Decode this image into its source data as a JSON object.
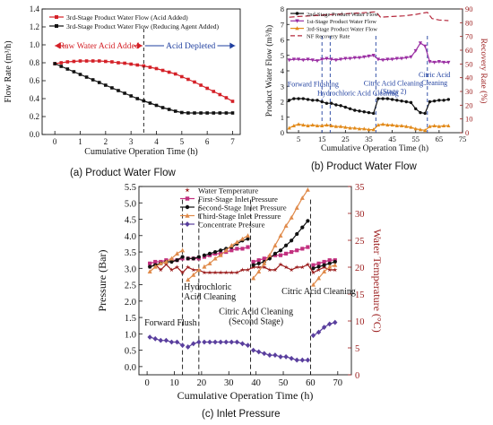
{
  "captions": {
    "a": "(a) Product Water Flow",
    "b": "(b) Product Water Flow",
    "c": "(c) Inlet Pressure"
  },
  "chart_data": [
    {
      "type": "line",
      "panel": "a",
      "xlabel": "Cumulative Operation Time (h)",
      "ylabel": "Flow Rate (m³/h)",
      "xlim": [
        -0.5,
        7.3
      ],
      "ylim": [
        0,
        1.4
      ],
      "xticks": [
        "0",
        "1",
        "2",
        "3",
        "4",
        "5",
        "6",
        "7"
      ],
      "yticks": [
        "0.0",
        "0.2",
        "0.4",
        "0.6",
        "0.8",
        "1.0",
        "1.2",
        "1.4"
      ],
      "grid": false,
      "legend_position": "top-right",
      "series": [
        {
          "name": "3rd-Stage Product Water Flow (Acid Added)",
          "color": "#d42027",
          "marker": "square",
          "x": [
            0,
            0.25,
            0.5,
            0.75,
            1,
            1.25,
            1.5,
            1.75,
            2,
            2.25,
            2.5,
            2.75,
            3,
            3.25,
            3.5,
            3.75,
            4,
            4.25,
            4.5,
            4.75,
            5,
            5.25,
            5.5,
            5.75,
            6,
            6.25,
            6.5,
            6.75,
            7
          ],
          "y": [
            0.79,
            0.8,
            0.81,
            0.815,
            0.82,
            0.82,
            0.82,
            0.82,
            0.815,
            0.81,
            0.8,
            0.795,
            0.785,
            0.775,
            0.765,
            0.75,
            0.735,
            0.715,
            0.695,
            0.675,
            0.645,
            0.615,
            0.585,
            0.55,
            0.515,
            0.48,
            0.445,
            0.41,
            0.37
          ]
        },
        {
          "name": "3rd-Stage Product Water Flow (Reducing Agent Added)",
          "color": "#111111",
          "marker": "square",
          "x": [
            0,
            0.25,
            0.5,
            0.75,
            1,
            1.25,
            1.5,
            1.75,
            2,
            2.25,
            2.5,
            2.75,
            3,
            3.25,
            3.5,
            3.75,
            4,
            4.25,
            4.5,
            4.75,
            5,
            5.25,
            5.5,
            5.75,
            6,
            6.25,
            6.5,
            6.75,
            7
          ],
          "y": [
            0.79,
            0.76,
            0.73,
            0.7,
            0.67,
            0.64,
            0.61,
            0.58,
            0.55,
            0.52,
            0.49,
            0.46,
            0.43,
            0.4,
            0.375,
            0.35,
            0.325,
            0.3,
            0.28,
            0.26,
            0.245,
            0.24,
            0.24,
            0.24,
            0.24,
            0.24,
            0.24,
            0.24,
            0.24
          ]
        }
      ],
      "annotations": [
        {
          "text": "Raw Water Acid Added",
          "color": "#d42027"
        },
        {
          "text": "Acid Depleted",
          "color": "#1f3f9f"
        }
      ]
    },
    {
      "type": "line",
      "panel": "b",
      "xlabel": "Cumulative Operation Time (h)",
      "ylabel": "Product Water Flow (m³/h)",
      "ylabel_right": "Recovery Rate (%)",
      "xlim": [
        0,
        75
      ],
      "ylim": [
        0,
        8
      ],
      "ylim_right": [
        0,
        90
      ],
      "xticks": [
        "5",
        "15",
        "25",
        "35",
        "45",
        "55",
        "65",
        "75"
      ],
      "yticks": [
        "0",
        "1",
        "2",
        "3",
        "4",
        "5",
        "6",
        "7",
        "8"
      ],
      "yticks_right": [
        "0",
        "10",
        "20",
        "30",
        "40",
        "50",
        "60",
        "70",
        "80",
        "90"
      ],
      "legend_position": "top-left",
      "series": [
        {
          "name": "2nd-Stage Product Water Flow",
          "color": "#111111",
          "marker": "circle",
          "x": [
            1,
            3,
            5,
            7,
            9,
            11,
            13,
            15,
            17,
            19,
            21,
            23,
            25,
            27,
            29,
            31,
            33,
            35,
            37,
            39,
            41,
            43,
            45,
            47,
            49,
            51,
            53,
            55,
            57,
            59,
            61,
            63,
            65,
            67,
            69
          ],
          "y": [
            2.1,
            2.2,
            2.2,
            2.2,
            2.15,
            2.1,
            2.1,
            2.0,
            1.9,
            1.9,
            1.8,
            1.75,
            1.65,
            1.55,
            1.45,
            1.4,
            1.35,
            1.3,
            1.25,
            2.2,
            2.2,
            2.2,
            2.15,
            2.1,
            2.05,
            2.0,
            1.95,
            1.55,
            1.3,
            1.25,
            2.0,
            2.05,
            2.1,
            2.1,
            2.15
          ]
        },
        {
          "name": "1st-Stage Product Water Flow",
          "color": "#9b2fa3",
          "marker": "triangle-down",
          "x": [
            1,
            3,
            5,
            7,
            9,
            11,
            13,
            15,
            17,
            19,
            21,
            23,
            25,
            27,
            29,
            31,
            33,
            35,
            37,
            39,
            41,
            43,
            45,
            47,
            49,
            51,
            53,
            55,
            57,
            59,
            61,
            63,
            65,
            67,
            69
          ],
          "y": [
            4.7,
            4.75,
            4.75,
            4.7,
            4.75,
            4.7,
            4.65,
            4.75,
            4.8,
            4.75,
            4.7,
            4.75,
            4.8,
            4.8,
            4.85,
            4.85,
            4.9,
            4.95,
            5.0,
            4.75,
            4.7,
            4.75,
            4.75,
            4.8,
            4.8,
            4.85,
            4.9,
            5.3,
            5.8,
            5.6,
            4.6,
            4.55,
            4.6,
            4.55,
            4.55
          ]
        },
        {
          "name": "3rd-Stage Product Water Flow",
          "color": "#e28a1a",
          "marker": "triangle",
          "x": [
            1,
            3,
            5,
            7,
            9,
            11,
            13,
            15,
            17,
            19,
            21,
            23,
            25,
            27,
            29,
            31,
            33,
            35,
            37,
            39,
            41,
            43,
            45,
            47,
            49,
            51,
            53,
            55,
            57,
            59,
            61,
            63,
            65,
            67,
            69
          ],
          "y": [
            0.3,
            0.45,
            0.55,
            0.5,
            0.45,
            0.5,
            0.45,
            0.45,
            0.5,
            0.45,
            0.4,
            0.4,
            0.35,
            0.3,
            0.3,
            0.25,
            0.25,
            0.2,
            0.2,
            0.5,
            0.55,
            0.5,
            0.5,
            0.45,
            0.45,
            0.4,
            0.35,
            0.25,
            0.2,
            0.15,
            0.4,
            0.45,
            0.4,
            0.45,
            0.45
          ]
        },
        {
          "name": "NF Recovery Rate",
          "color": "#b5283c",
          "dash": true,
          "axis": "right",
          "x": [
            1,
            5,
            10,
            15,
            20,
            25,
            30,
            35,
            38,
            40,
            45,
            50,
            55,
            58,
            60,
            62,
            65,
            69
          ],
          "y": [
            84,
            84.5,
            85,
            85.5,
            86,
            86.5,
            87,
            87.5,
            88,
            84,
            84.5,
            85,
            86,
            87,
            87.5,
            83,
            82,
            81.5
          ]
        }
      ],
      "vlines": [
        15,
        18.5,
        38,
        60
      ],
      "annotations": [
        "Forward Flushing",
        "Hydrochloric Acid Cleaning",
        "Citric Acid Cleaning\n(Stage 2)",
        "Citric Acid\nCleaning"
      ]
    },
    {
      "type": "line",
      "panel": "c",
      "xlabel": "Cumulative Operation Time (h)",
      "ylabel": "Pressure (Bar)",
      "ylabel_right": "Water Temperature (°C)",
      "xlim": [
        -3,
        75
      ],
      "ylim": [
        -0.25,
        5.5
      ],
      "ylim_right": [
        0,
        35
      ],
      "xticks": [
        "0",
        "10",
        "20",
        "30",
        "40",
        "50",
        "60",
        "70"
      ],
      "yticks": [
        "0.0",
        "0.5",
        "1.0",
        "1.5",
        "2.0",
        "2.5",
        "3.0",
        "3.5",
        "4.0",
        "4.5",
        "5.0",
        "5.5"
      ],
      "yticks_right": [
        "0",
        "5",
        "10",
        "15",
        "20",
        "25",
        "30",
        "35"
      ],
      "legend_position": "top-left",
      "series": [
        {
          "name": "Water Temperature",
          "color": "#9b1c1c",
          "marker": "star",
          "axis": "right",
          "x": [
            1,
            3,
            5,
            7,
            9,
            11,
            13,
            15,
            17,
            19,
            21,
            23,
            25,
            27,
            29,
            31,
            33,
            35,
            37,
            39,
            41,
            43,
            45,
            47,
            49,
            51,
            53,
            55,
            57,
            59,
            61,
            63,
            65,
            67,
            69
          ],
          "y": [
            20,
            20.5,
            19.5,
            20.5,
            19.5,
            20,
            19,
            20,
            19.5,
            19.5,
            19,
            19,
            19,
            19,
            19,
            19,
            19,
            19.5,
            19.5,
            20,
            20,
            20,
            19.5,
            19.5,
            20.5,
            20,
            19.5,
            20,
            20,
            20.5,
            19,
            19.5,
            20,
            19.5,
            19.5
          ]
        },
        {
          "name": "First-Stage Inlet Pressure",
          "color": "#c2307f",
          "marker": "square",
          "x": [
            1,
            3,
            5,
            7,
            9,
            11,
            13,
            15,
            17,
            19,
            21,
            23,
            25,
            27,
            29,
            31,
            33,
            35,
            37,
            39,
            41,
            43,
            45,
            47,
            49,
            51,
            53,
            55,
            57,
            59,
            61,
            63,
            65,
            67,
            69
          ],
          "y": [
            3.15,
            3.2,
            3.2,
            3.25,
            3.25,
            3.25,
            3.3,
            3.3,
            3.3,
            3.3,
            3.35,
            3.4,
            3.45,
            3.45,
            3.5,
            3.55,
            3.6,
            3.6,
            3.65,
            3.2,
            3.25,
            3.3,
            3.35,
            3.4,
            3.4,
            3.45,
            3.5,
            3.55,
            3.6,
            3.65,
            3.1,
            3.15,
            3.2,
            3.25,
            3.25
          ]
        },
        {
          "name": "Second-Stage Inlet Pressure",
          "color": "#111111",
          "marker": "circle",
          "x": [
            1,
            3,
            5,
            7,
            9,
            11,
            13,
            15,
            17,
            19,
            21,
            23,
            25,
            27,
            29,
            31,
            33,
            35,
            37,
            39,
            41,
            43,
            45,
            47,
            49,
            51,
            53,
            55,
            57,
            59,
            61,
            63,
            65,
            67,
            69
          ],
          "y": [
            3.05,
            3.1,
            3.15,
            3.2,
            3.2,
            3.25,
            3.35,
            3.3,
            3.3,
            3.35,
            3.4,
            3.45,
            3.5,
            3.55,
            3.6,
            3.65,
            3.75,
            3.85,
            3.9,
            3.1,
            3.15,
            3.2,
            3.3,
            3.45,
            3.55,
            3.7,
            3.85,
            4.05,
            4.25,
            4.45,
            3.0,
            3.05,
            3.1,
            3.15,
            3.2
          ]
        },
        {
          "name": "Third-Stage Inlet Pressure",
          "color": "#e08a4a",
          "marker": "triangle",
          "x": [
            1,
            3,
            5,
            7,
            9,
            11,
            13,
            15,
            17,
            19,
            21,
            23,
            25,
            27,
            29,
            31,
            33,
            35,
            37,
            39,
            41,
            43,
            45,
            47,
            49,
            51,
            53,
            55,
            57,
            59,
            61,
            63,
            65,
            67,
            69
          ],
          "y": [
            2.9,
            3.05,
            3.15,
            3.2,
            3.3,
            3.45,
            3.55,
            2.65,
            2.8,
            2.95,
            3.05,
            3.15,
            3.3,
            3.4,
            3.55,
            3.7,
            3.8,
            3.9,
            4.0,
            2.7,
            2.9,
            3.15,
            3.4,
            3.7,
            4.0,
            4.3,
            4.55,
            4.85,
            5.15,
            5.4,
            2.5,
            2.7,
            2.9,
            3.05,
            3.1
          ]
        },
        {
          "name": "Concentrate Pressure",
          "color": "#5a3f9e",
          "marker": "diamond",
          "x": [
            1,
            3,
            5,
            7,
            9,
            11,
            13,
            15,
            17,
            19,
            21,
            23,
            25,
            27,
            29,
            31,
            33,
            35,
            37,
            39,
            41,
            43,
            45,
            47,
            49,
            51,
            53,
            55,
            57,
            59,
            61,
            63,
            65,
            67,
            69
          ],
          "y": [
            0.9,
            0.85,
            0.8,
            0.8,
            0.75,
            0.75,
            0.65,
            0.6,
            0.7,
            0.75,
            0.75,
            0.75,
            0.75,
            0.75,
            0.75,
            0.75,
            0.75,
            0.7,
            0.65,
            0.5,
            0.45,
            0.4,
            0.35,
            0.35,
            0.3,
            0.3,
            0.25,
            0.2,
            0.2,
            0.2,
            0.95,
            1.05,
            1.2,
            1.3,
            1.35
          ]
        }
      ],
      "vlines": [
        13,
        19,
        38,
        60
      ],
      "annotations": [
        "Forward Flush",
        "Hydrochloric\nAcid Cleaning",
        "Citric Acid Cleaning\n(Second Stage)",
        "Citric Acid Cleaning"
      ]
    }
  ]
}
